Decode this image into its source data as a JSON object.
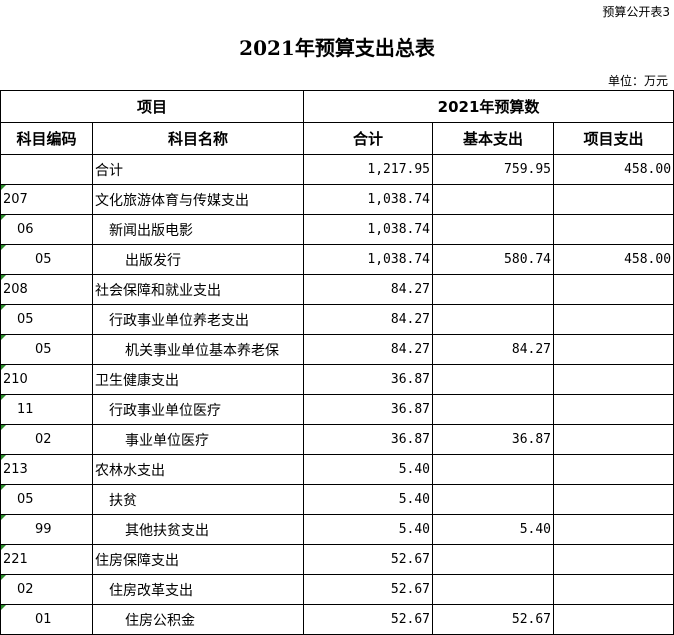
{
  "corner_label": "预算公开表3",
  "title": "2021年预算支出总表",
  "unit": "单位：万元",
  "headers": {
    "item": "项目",
    "budget": "2021年预算数",
    "code": "科目编码",
    "name": "科目名称",
    "total": "合计",
    "basic": "基本支出",
    "project": "项目支出"
  },
  "rows": [
    {
      "code": "",
      "name": "合计",
      "total": "1,217.95",
      "basic": "759.95",
      "project": "458.00",
      "level": 1
    },
    {
      "code": "207",
      "name": "文化旅游体育与传媒支出",
      "total": "1,038.74",
      "basic": "",
      "project": "",
      "level": 1
    },
    {
      "code": "06",
      "name": "新闻出版电影",
      "total": "1,038.74",
      "basic": "",
      "project": "",
      "level": 2
    },
    {
      "code": "05",
      "name": "出版发行",
      "total": "1,038.74",
      "basic": "580.74",
      "project": "458.00",
      "level": 3
    },
    {
      "code": "208",
      "name": "社会保障和就业支出",
      "total": "84.27",
      "basic": "",
      "project": "",
      "level": 1
    },
    {
      "code": "05",
      "name": "行政事业单位养老支出",
      "total": "84.27",
      "basic": "",
      "project": "",
      "level": 2
    },
    {
      "code": "05",
      "name": "机关事业单位基本养老保",
      "total": "84.27",
      "basic": "84.27",
      "project": "",
      "level": 3
    },
    {
      "code": "210",
      "name": "卫生健康支出",
      "total": "36.87",
      "basic": "",
      "project": "",
      "level": 1
    },
    {
      "code": "11",
      "name": "行政事业单位医疗",
      "total": "36.87",
      "basic": "",
      "project": "",
      "level": 2
    },
    {
      "code": "02",
      "name": "事业单位医疗",
      "total": "36.87",
      "basic": "36.87",
      "project": "",
      "level": 3
    },
    {
      "code": "213",
      "name": "农林水支出",
      "total": "5.40",
      "basic": "",
      "project": "",
      "level": 1
    },
    {
      "code": "05",
      "name": "扶贫",
      "total": "5.40",
      "basic": "",
      "project": "",
      "level": 2
    },
    {
      "code": "99",
      "name": "其他扶贫支出",
      "total": "5.40",
      "basic": "5.40",
      "project": "",
      "level": 3
    },
    {
      "code": "221",
      "name": "住房保障支出",
      "total": "52.67",
      "basic": "",
      "project": "",
      "level": 1
    },
    {
      "code": "02",
      "name": "住房改革支出",
      "total": "52.67",
      "basic": "",
      "project": "",
      "level": 2
    },
    {
      "code": "01",
      "name": "住房公积金",
      "total": "52.67",
      "basic": "52.67",
      "project": "",
      "level": 3
    }
  ]
}
